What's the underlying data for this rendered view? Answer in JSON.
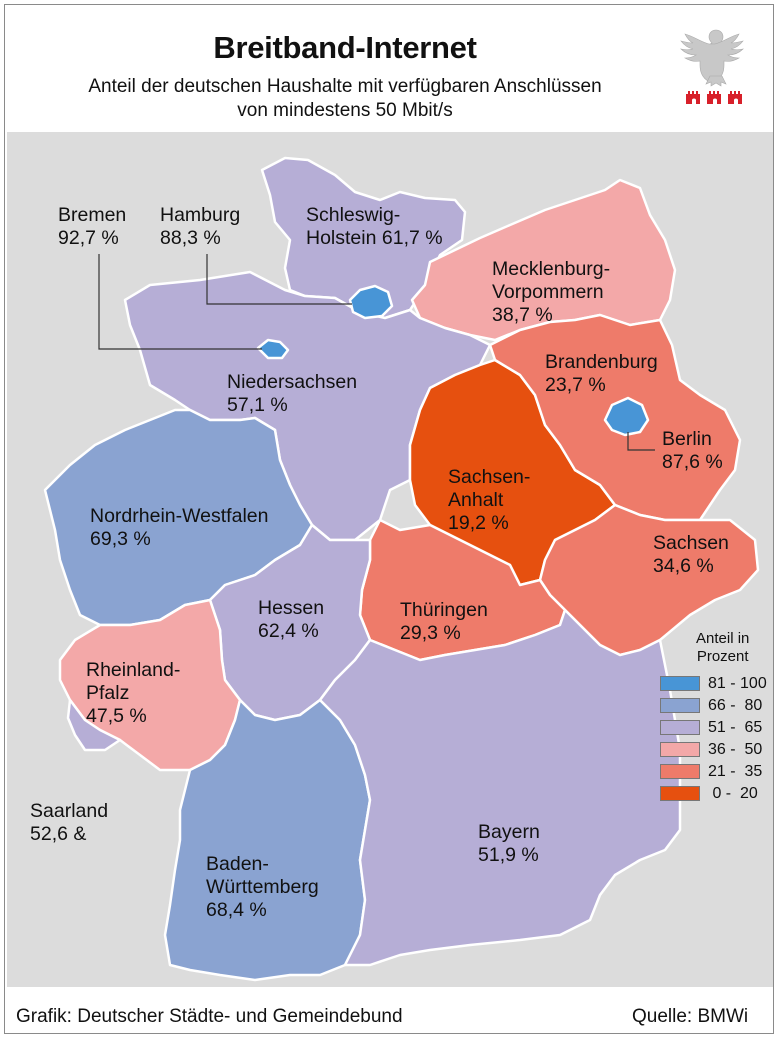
{
  "title": "Breitband-Internet",
  "subtitle_line1": "Anteil der deutschen Haushalte mit verfügbaren Anschlüssen",
  "subtitle_line2": "von mindestens 50 Mbit/s",
  "credit": "Grafik: Deutscher Städte- und Gemeindebund",
  "source": "Quelle: BMWi",
  "legend": {
    "title_line1": "Anteil in",
    "title_line2": "Prozent",
    "classes": [
      {
        "range": "81 - 100",
        "color": "#4895d6"
      },
      {
        "range": "66 -  80",
        "color": "#8aa3d1"
      },
      {
        "range": "51 -  65",
        "color": "#b6aed6"
      },
      {
        "range": "36 -  50",
        "color": "#f3a8a8"
      },
      {
        "range": "21 -  35",
        "color": "#ee7b6a"
      },
      {
        "range": " 0 -  20",
        "color": "#e6500f"
      }
    ]
  },
  "colors": {
    "background": "#dcdcdc",
    "region_border": "#ffffff",
    "leader_line": "#333333"
  },
  "states": [
    {
      "id": "schleswig-holstein",
      "name_line1": "Schleswig-",
      "name_line2": "Holstein",
      "value_text": "61,7 %",
      "value": 61.7,
      "class": "51-65"
    },
    {
      "id": "hamburg",
      "name_line1": "Hamburg",
      "value_text": "88,3 %",
      "value": 88.3,
      "class": "81-100"
    },
    {
      "id": "bremen",
      "name_line1": "Bremen",
      "value_text": "92,7 %",
      "value": 92.7,
      "class": "81-100"
    },
    {
      "id": "mecklenburg-vorpommern",
      "name_line1": "Mecklenburg-",
      "name_line2": "Vorpommern",
      "value_text": "38,7 %",
      "value": 38.7,
      "class": "36-50"
    },
    {
      "id": "niedersachsen",
      "name_line1": "Niedersachsen",
      "value_text": "57,1 %",
      "value": 57.1,
      "class": "51-65"
    },
    {
      "id": "brandenburg",
      "name_line1": "Brandenburg",
      "value_text": "23,7 %",
      "value": 23.7,
      "class": "21-35"
    },
    {
      "id": "berlin",
      "name_line1": "Berlin",
      "value_text": "87,6 %",
      "value": 87.6,
      "class": "81-100"
    },
    {
      "id": "sachsen-anhalt",
      "name_line1": "Sachsen-",
      "name_line2": "Anhalt",
      "value_text": "19,2 %",
      "value": 19.2,
      "class": "0-20"
    },
    {
      "id": "nordrhein-westfalen",
      "name_line1": "Nordrhein-Westfalen",
      "value_text": "69,3 %",
      "value": 69.3,
      "class": "66-80"
    },
    {
      "id": "sachsen",
      "name_line1": "Sachsen",
      "value_text": "34,6 %",
      "value": 34.6,
      "class": "21-35"
    },
    {
      "id": "hessen",
      "name_line1": "Hessen",
      "value_text": "62,4 %",
      "value": 62.4,
      "class": "51-65"
    },
    {
      "id": "thueringen",
      "name_line1": "Thüringen",
      "value_text": "29,3 %",
      "value": 29.3,
      "class": "21-35"
    },
    {
      "id": "rheinland-pfalz",
      "name_line1": "Rheinland-",
      "name_line2": "Pfalz",
      "value_text": "47,5 %",
      "value": 47.5,
      "class": "36-50"
    },
    {
      "id": "saarland",
      "name_line1": "Saarland",
      "value_text": "52,6 &",
      "value": 52.6,
      "class": "51-65"
    },
    {
      "id": "bayern",
      "name_line1": "Bayern",
      "value_text": "51,9 %",
      "value": 51.9,
      "class": "51-65"
    },
    {
      "id": "baden-wuerttemberg",
      "name_line1": "Baden-",
      "name_line2": "Württemberg",
      "value_text": "68,4 %",
      "value": 68.4,
      "class": "66-80"
    }
  ]
}
